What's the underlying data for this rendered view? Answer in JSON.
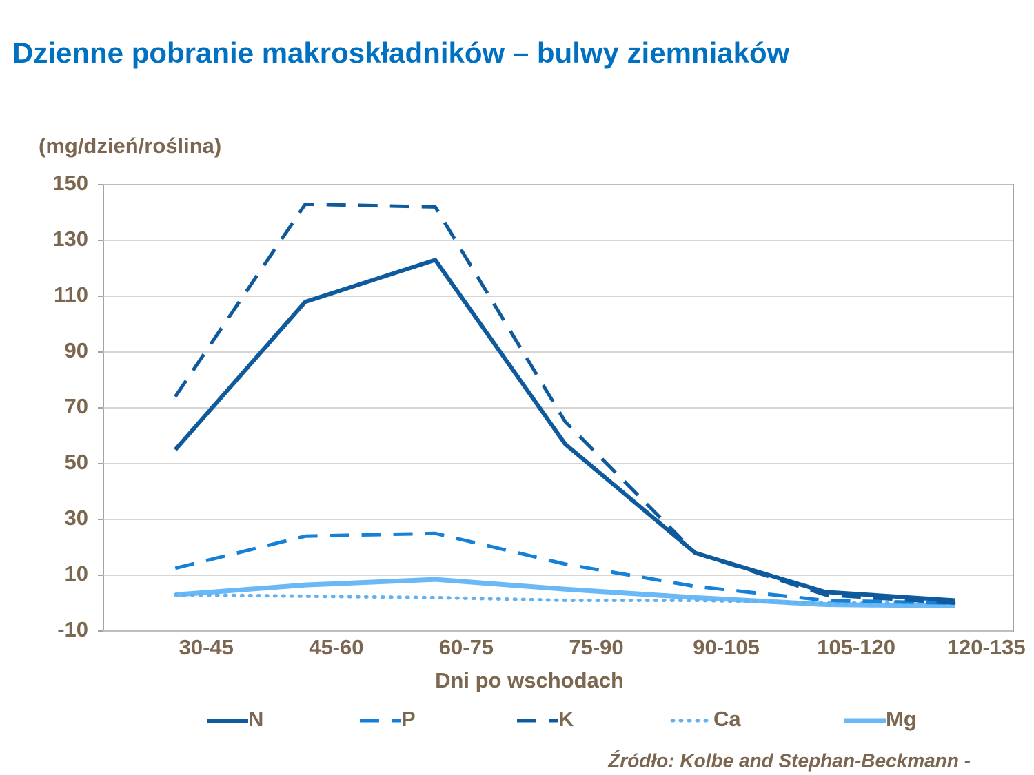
{
  "chart_data": {
    "type": "line",
    "title": "Dzienne pobranie makroskładników – bulwy ziemniaków",
    "y_label": "(mg/dzień/roślina)",
    "x_label": "Dni po wschodach",
    "source": "Źródło: Kolbe and Stephan-Beckmann -",
    "categories": [
      "30-45",
      "45-60",
      "60-75",
      "75-90",
      "90-105",
      "105-120",
      "120-135"
    ],
    "ylim": [
      -10,
      150
    ],
    "yticks": [
      -10,
      10,
      30,
      50,
      70,
      90,
      110,
      130,
      150
    ],
    "grid": true,
    "legend": "bottom",
    "series": [
      {
        "name": "N",
        "color": "#0f5a9c",
        "dash": "solid",
        "values": [
          55,
          108,
          123,
          57,
          18,
          4,
          1
        ]
      },
      {
        "name": "P",
        "color": "#1580d8",
        "dash": "dashed",
        "values": [
          12.5,
          24,
          25,
          14,
          6,
          1,
          0
        ]
      },
      {
        "name": "K",
        "color": "#0f5a9c",
        "dash": "dashed",
        "values": [
          74,
          143,
          142,
          65,
          18,
          3,
          0
        ]
      },
      {
        "name": "Ca",
        "color": "#62b2f2",
        "dash": "dotted",
        "values": [
          3,
          2.5,
          2,
          1,
          1,
          0,
          0
        ]
      },
      {
        "name": "Mg",
        "color": "#6ab9f6",
        "dash": "thick",
        "values": [
          3,
          6.5,
          8.5,
          5,
          2,
          -0.5,
          -1
        ]
      }
    ]
  }
}
